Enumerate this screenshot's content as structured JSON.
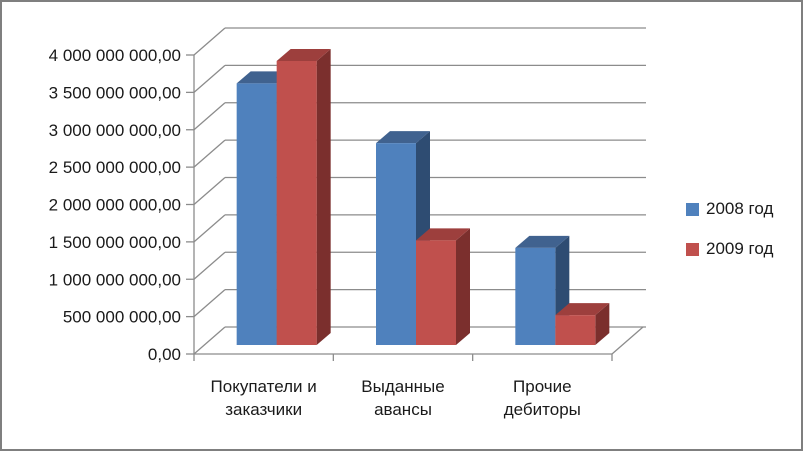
{
  "chart_data": {
    "type": "bar",
    "variant": "3d-clustered-column",
    "title": "",
    "categories": [
      "Покупатели и заказчики",
      "Выданные авансы",
      "Прочие дебиторы"
    ],
    "category_label_lines": [
      [
        "Покупатели и",
        "заказчики"
      ],
      [
        "Выданные",
        "авансы"
      ],
      [
        "Прочие",
        "дебиторы"
      ]
    ],
    "series": [
      {
        "name": "2008 год",
        "values": [
          3500000000,
          2700000000,
          1300000000
        ],
        "color": "#4f81bd",
        "top_color": "#40628f",
        "side_color": "#2e4c72"
      },
      {
        "name": "2009 год",
        "values": [
          3800000000,
          1400000000,
          400000000
        ],
        "color": "#c0504d",
        "top_color": "#9d3f3d",
        "side_color": "#7b2f2d"
      }
    ],
    "ylim": [
      0,
      4000000000
    ],
    "ytick_step": 500000000,
    "ytick_labels": [
      "0,00",
      "500 000 000,00",
      "1 000 000 000,00",
      "1 500 000 000,00",
      "2 000 000 000,00",
      "2 500 000 000,00",
      "3 000 000 000,00",
      "3 500 000 000,00",
      "4 000 000 000,00"
    ],
    "grid": true,
    "legend_position": "right"
  },
  "style": {
    "background": "#ffffff",
    "border_color": "#7f7f7f",
    "axis_color": "#8c8c8c",
    "text_color": "#1a1a1a"
  }
}
